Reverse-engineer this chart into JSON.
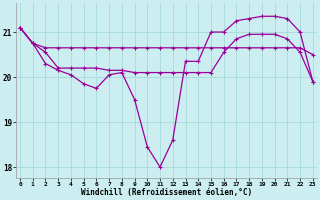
{
  "xlabel": "Windchill (Refroidissement éolien,°C)",
  "background_color": "#cceef0",
  "grid_color": "#aadddd",
  "line_color": "#990099",
  "x": [
    0,
    1,
    2,
    3,
    4,
    5,
    6,
    7,
    8,
    9,
    10,
    11,
    12,
    13,
    14,
    15,
    16,
    17,
    18,
    19,
    20,
    21,
    22,
    23
  ],
  "line1": [
    21.1,
    20.75,
    20.65,
    20.65,
    20.65,
    20.65,
    20.65,
    20.65,
    20.65,
    20.65,
    20.65,
    20.65,
    20.65,
    20.65,
    20.65,
    20.65,
    20.65,
    20.65,
    20.65,
    20.65,
    20.65,
    20.65,
    20.65,
    20.5
  ],
  "line2": [
    21.1,
    20.75,
    20.3,
    20.15,
    20.05,
    19.85,
    19.75,
    20.05,
    20.1,
    19.5,
    18.45,
    18.0,
    18.6,
    20.35,
    20.35,
    21.0,
    21.0,
    21.25,
    21.3,
    21.35,
    21.35,
    21.3,
    21.0,
    19.9
  ],
  "line3": [
    21.1,
    20.75,
    20.55,
    20.2,
    20.2,
    20.2,
    20.2,
    20.15,
    20.15,
    20.1,
    20.1,
    20.1,
    20.1,
    20.1,
    20.1,
    20.1,
    20.55,
    20.85,
    20.95,
    20.95,
    20.95,
    20.85,
    20.55,
    19.9
  ],
  "ylim": [
    17.75,
    21.65
  ],
  "yticks": [
    18,
    19,
    20,
    21
  ],
  "xticks": [
    0,
    1,
    2,
    3,
    4,
    5,
    6,
    7,
    8,
    9,
    10,
    11,
    12,
    13,
    14,
    15,
    16,
    17,
    18,
    19,
    20,
    21,
    22,
    23
  ]
}
